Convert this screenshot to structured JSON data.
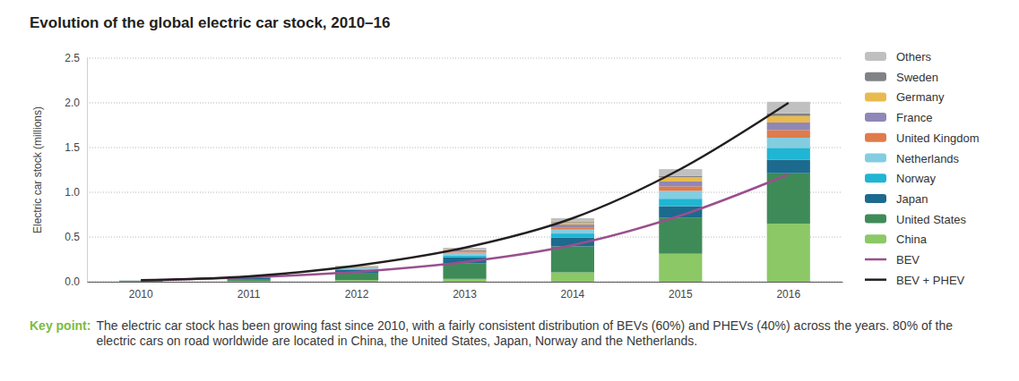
{
  "chart_data": {
    "type": "bar",
    "title": "Evolution of the global electric car stock, 2010–16",
    "y_label": "Electric car stock (millions)",
    "annotations": [
      {
        "label": "Key point:",
        "text": "The electric car stock has been growing fast since 2010, with a fairly consistent distribution of BEVs (60%) and PHEVs (40%) across the years. 80% of the electric cars on road worldwide are located in China, the United States, Japan, Norway and the Netherlands."
      }
    ],
    "categories": [
      "2010",
      "2011",
      "2012",
      "2013",
      "2014",
      "2015",
      "2016"
    ],
    "stacked": true,
    "grid": true,
    "legend": "right",
    "ylim": [
      0,
      2.5
    ],
    "yticks": [
      {
        "value": 0,
        "label": "0.0"
      },
      0.5,
      {
        "value": 1,
        "label": "1.0"
      },
      1.5,
      {
        "value": 2,
        "label": "2.0"
      },
      2.5
    ],
    "series": [
      {
        "name": "China",
        "type": "bar",
        "color": "#8cc866",
        "values": [
          0.002,
          0.007,
          0.017,
          0.032,
          0.105,
          0.313,
          0.649
        ]
      },
      {
        "name": "United States",
        "type": "bar",
        "color": "#3f8b58",
        "values": [
          0.004,
          0.022,
          0.075,
          0.172,
          0.29,
          0.405,
          0.564
        ]
      },
      {
        "name": "Japan",
        "type": "bar",
        "color": "#1c6a8e",
        "values": [
          0.004,
          0.017,
          0.042,
          0.071,
          0.1,
          0.126,
          0.151
        ]
      },
      {
        "name": "Norway",
        "type": "bar",
        "color": "#1fb5d3",
        "values": [
          0.001,
          0.005,
          0.01,
          0.02,
          0.044,
          0.084,
          0.133
        ]
      },
      {
        "name": "Netherlands",
        "type": "bar",
        "color": "#84cde0",
        "values": [
          0.0003,
          0.001,
          0.007,
          0.029,
          0.044,
          0.088,
          0.113
        ]
      },
      {
        "name": "United Kingdom",
        "type": "bar",
        "color": "#e07b4b",
        "values": [
          0.0003,
          0.001,
          0.004,
          0.01,
          0.025,
          0.05,
          0.086
        ]
      },
      {
        "name": "France",
        "type": "bar",
        "color": "#8f87b6",
        "values": [
          0.0003,
          0.003,
          0.01,
          0.019,
          0.031,
          0.054,
          0.084
        ]
      },
      {
        "name": "Germany",
        "type": "bar",
        "color": "#e9ba4e",
        "values": [
          0.0003,
          0.002,
          0.005,
          0.012,
          0.024,
          0.049,
          0.073
        ]
      },
      {
        "name": "Sweden",
        "type": "bar",
        "color": "#808285",
        "values": [
          0.0003,
          0.0002,
          0.001,
          0.003,
          0.008,
          0.015,
          0.029
        ]
      },
      {
        "name": "Others",
        "type": "bar",
        "color": "#c0c0c0",
        "values": [
          0.005,
          0.003,
          0.009,
          0.012,
          0.04,
          0.075,
          0.13
        ]
      },
      {
        "name": "BEV",
        "type": "line",
        "color": "#9a4f8e",
        "values": [
          0.012,
          0.05,
          0.11,
          0.22,
          0.41,
          0.74,
          1.2
        ]
      },
      {
        "name": "BEV + PHEV",
        "type": "line",
        "color": "#231f20",
        "values": [
          0.017,
          0.06,
          0.18,
          0.38,
          0.71,
          1.26,
          2.0
        ]
      }
    ]
  }
}
